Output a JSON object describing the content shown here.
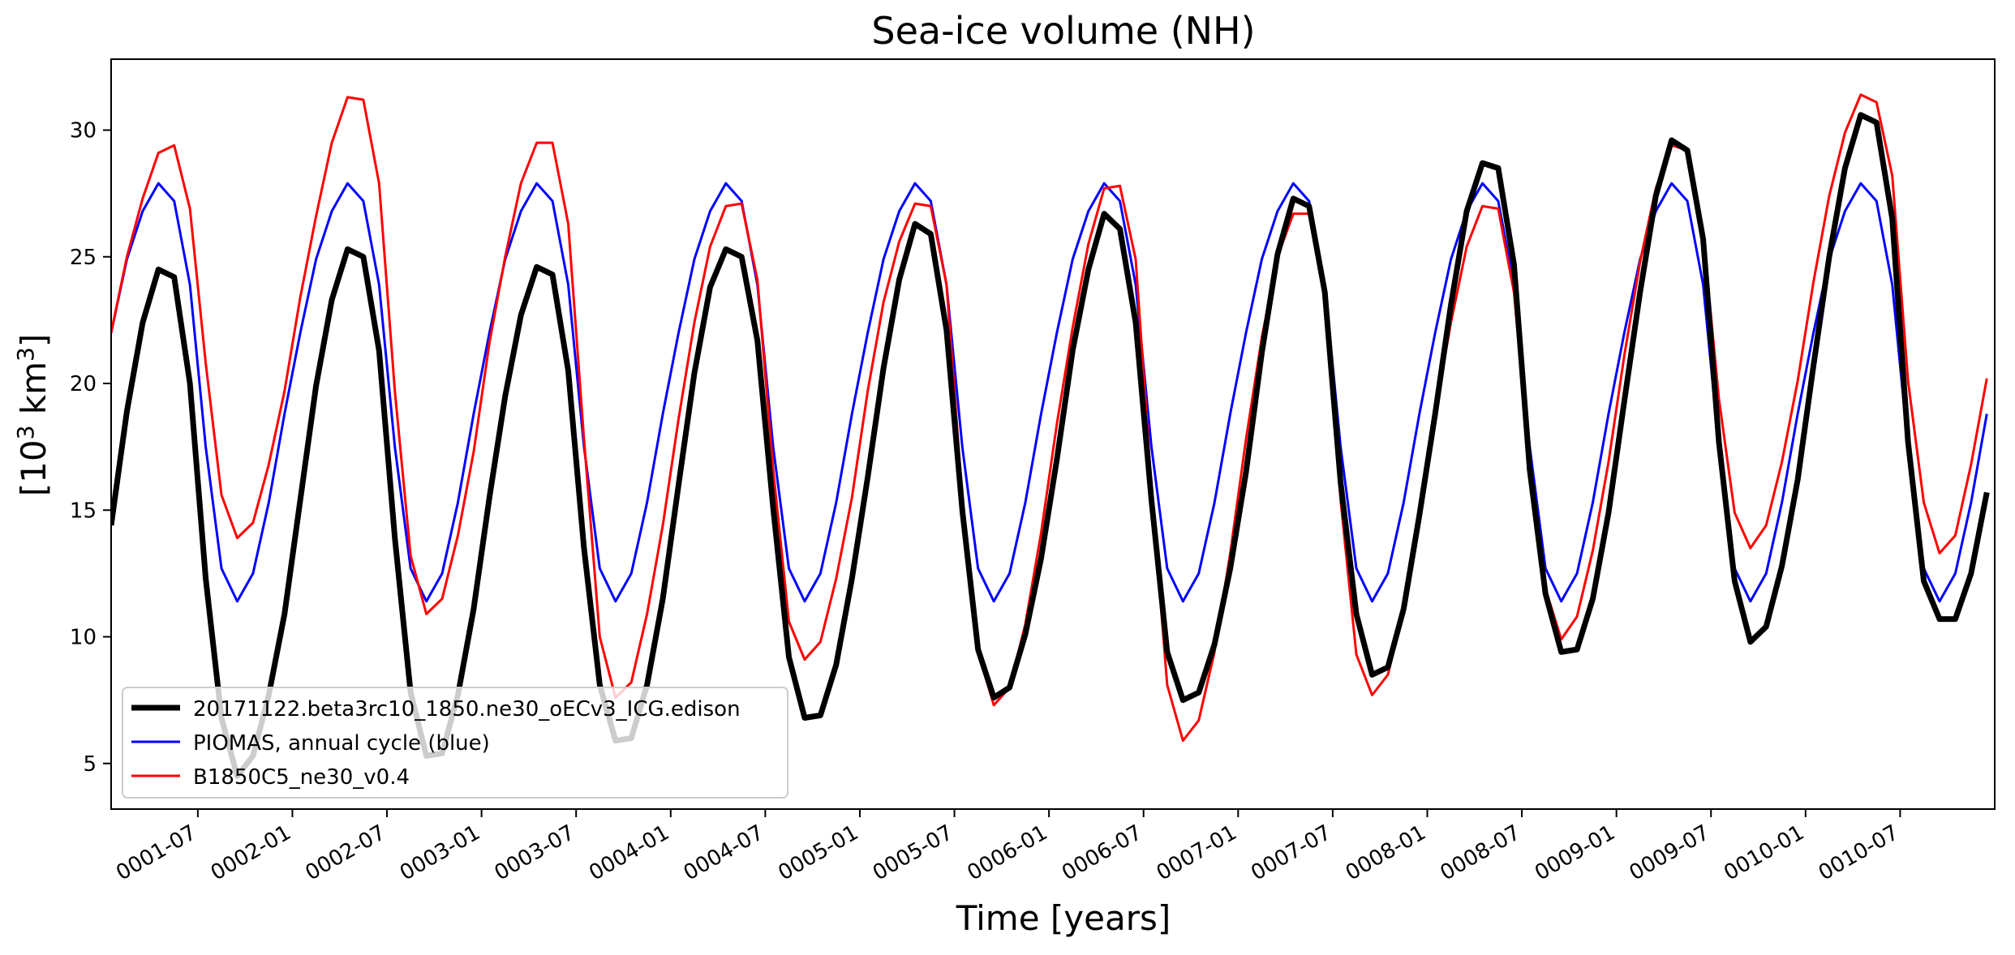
{
  "chart_data": {
    "type": "line",
    "title": "Sea-ice volume (NH)",
    "xlabel": "Time [years]",
    "ylabel": {
      "prefix": "[10",
      "sup1": "3",
      "mid": " km",
      "sup2": "3",
      "suffix": "]"
    },
    "x_start": "0001-01-15",
    "x_step": "monthly",
    "xlim_months": [
      0,
      119.5
    ],
    "ylim": [
      3.2,
      32.8
    ],
    "y_ticks": [
      5,
      10,
      15,
      20,
      25,
      30
    ],
    "x_ticks": [
      {
        "label": "0001-07",
        "month": 5.5
      },
      {
        "label": "0002-01",
        "month": 11.5
      },
      {
        "label": "0002-07",
        "month": 17.5
      },
      {
        "label": "0003-01",
        "month": 23.5
      },
      {
        "label": "0003-07",
        "month": 29.5
      },
      {
        "label": "0004-01",
        "month": 35.5
      },
      {
        "label": "0004-07",
        "month": 41.5
      },
      {
        "label": "0005-01",
        "month": 47.5
      },
      {
        "label": "0005-07",
        "month": 53.5
      },
      {
        "label": "0006-01",
        "month": 59.5
      },
      {
        "label": "0006-07",
        "month": 65.5
      },
      {
        "label": "0007-01",
        "month": 71.5
      },
      {
        "label": "0007-07",
        "month": 77.5
      },
      {
        "label": "0008-01",
        "month": 83.5
      },
      {
        "label": "0008-07",
        "month": 89.5
      },
      {
        "label": "0009-01",
        "month": 95.5
      },
      {
        "label": "0009-07",
        "month": 101.5
      },
      {
        "label": "0010-01",
        "month": 107.5
      },
      {
        "label": "0010-07",
        "month": 113.5
      }
    ],
    "grid": false,
    "legend_position": "lower-left",
    "series": [
      {
        "name": "20171122.beta3rc10_1850.ne30_oECv3_ICG.edison",
        "color": "#000000",
        "width": 3.5,
        "values": [
          14.4,
          18.9,
          22.4,
          24.5,
          24.2,
          20.0,
          12.3,
          6.8,
          4.5,
          5.3,
          7.7,
          10.9,
          15.4,
          19.9,
          23.3,
          25.3,
          25.0,
          21.3,
          13.9,
          7.8,
          5.3,
          5.4,
          7.7,
          11.1,
          15.5,
          19.5,
          22.7,
          24.6,
          24.3,
          20.5,
          13.5,
          8.1,
          5.9,
          6.0,
          8.1,
          11.5,
          16.0,
          20.4,
          23.8,
          25.3,
          25.0,
          21.7,
          15.1,
          9.2,
          6.8,
          6.9,
          8.9,
          12.3,
          16.3,
          20.6,
          24.1,
          26.3,
          25.9,
          22.1,
          15.0,
          9.5,
          7.6,
          8.0,
          10.1,
          13.1,
          17.0,
          21.3,
          24.5,
          26.7,
          26.1,
          22.4,
          15.4,
          9.4,
          7.5,
          7.8,
          9.7,
          12.7,
          16.5,
          21.2,
          25.1,
          27.3,
          27.0,
          23.6,
          16.1,
          10.9,
          8.5,
          8.8,
          11.1,
          14.8,
          18.8,
          23.1,
          26.8,
          28.7,
          28.5,
          24.7,
          16.6,
          11.7,
          9.4,
          9.5,
          11.5,
          14.9,
          19.3,
          23.6,
          27.4,
          29.6,
          29.2,
          25.7,
          17.7,
          12.2,
          9.8,
          10.4,
          12.8,
          16.2,
          20.7,
          25.0,
          28.5,
          30.6,
          30.3,
          26.5,
          17.7,
          12.2,
          10.7,
          10.7,
          12.5,
          15.7
        ]
      },
      {
        "name": "PIOMAS, annual cycle (blue)",
        "color": "#0000ff",
        "width": 1.5,
        "cycle": [
          22.0,
          24.9,
          26.8,
          27.9,
          27.2,
          23.9,
          17.5,
          12.7,
          11.4,
          12.5,
          15.3,
          18.8
        ]
      },
      {
        "name": "B1850C5_ne30_v0.4",
        "color": "#ff0000",
        "width": 1.5,
        "values": [
          22.0,
          25.0,
          27.3,
          29.1,
          29.4,
          26.9,
          20.8,
          15.6,
          13.9,
          14.5,
          16.8,
          19.7,
          23.4,
          26.6,
          29.5,
          31.3,
          31.2,
          27.9,
          19.7,
          13.2,
          10.9,
          11.5,
          14.0,
          17.3,
          21.6,
          25.0,
          27.9,
          29.5,
          29.5,
          26.3,
          17.8,
          10.0,
          7.6,
          8.2,
          10.9,
          14.4,
          18.6,
          22.4,
          25.4,
          27.0,
          27.1,
          24.1,
          16.6,
          10.6,
          9.1,
          9.8,
          12.3,
          15.5,
          19.7,
          23.2,
          25.6,
          27.1,
          27.0,
          23.9,
          15.5,
          9.4,
          7.3,
          8.0,
          10.5,
          14.1,
          18.4,
          22.2,
          25.5,
          27.7,
          27.8,
          24.9,
          15.9,
          8.1,
          5.9,
          6.7,
          9.4,
          13.3,
          17.8,
          21.8,
          25.0,
          26.7,
          26.7,
          23.4,
          15.4,
          9.3,
          7.7,
          8.5,
          11.1,
          14.6,
          18.9,
          22.4,
          25.4,
          27.0,
          26.9,
          23.6,
          16.7,
          11.9,
          9.9,
          10.8,
          13.4,
          16.9,
          21.1,
          24.8,
          27.7,
          29.4,
          29.2,
          25.9,
          19.4,
          14.9,
          13.5,
          14.4,
          16.9,
          20.1,
          24.0,
          27.4,
          29.9,
          31.4,
          31.1,
          28.2,
          20.1,
          15.3,
          13.3,
          14.0,
          16.8,
          20.2
        ]
      }
    ]
  }
}
